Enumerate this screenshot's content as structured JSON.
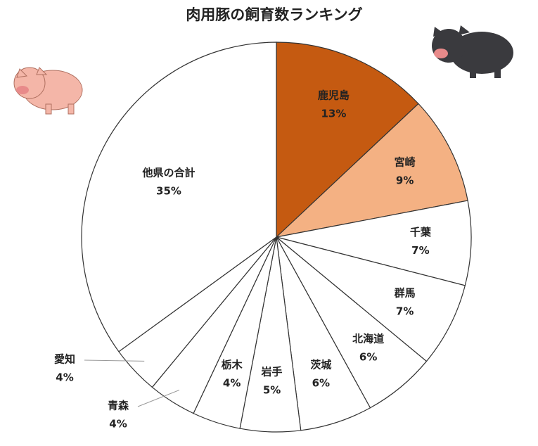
{
  "chart_data": {
    "type": "pie",
    "title": "肉用豚の飼育数ランキング",
    "categories": [
      "鹿児島",
      "宮崎",
      "千葉",
      "群馬",
      "北海道",
      "茨城",
      "岩手",
      "栃木",
      "青森",
      "愛知",
      "他県の合計"
    ],
    "values": [
      13,
      9,
      7,
      7,
      6,
      6,
      5,
      4,
      4,
      4,
      35
    ],
    "value_labels": [
      "13%",
      "9%",
      "7%",
      "7%",
      "6%",
      "6%",
      "5%",
      "4%",
      "4%",
      "4%",
      "35%"
    ],
    "colors": [
      "#c55a11",
      "#f4b183",
      "#ffffff",
      "#ffffff",
      "#ffffff",
      "#ffffff",
      "#ffffff",
      "#ffffff",
      "#ffffff",
      "#ffffff",
      "#ffffff"
    ]
  }
}
